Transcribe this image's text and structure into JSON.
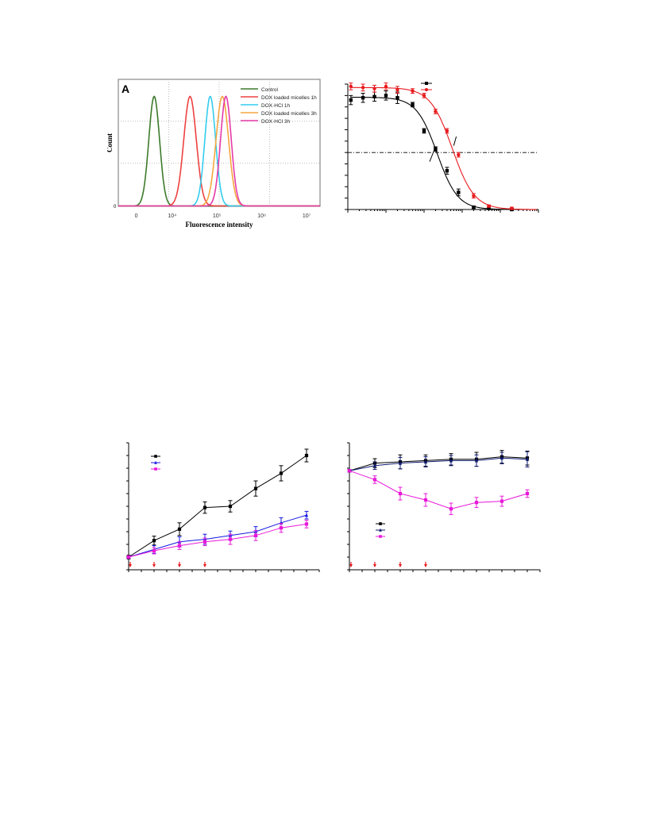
{
  "colors": {
    "black": "#000000",
    "red": "#e8191d",
    "blue": "#1418e0",
    "magenta": "#e817d8",
    "navy": "#0d1a6e",
    "green": "#3c7a2a",
    "hist_red": "#ee4040",
    "cyan": "#33ccee",
    "orange": "#f5a640",
    "pink": "#e53aa8"
  },
  "chart_data": [
    {
      "id": "A",
      "type": "line",
      "panel_label": "A",
      "xlabel": "Fluorescence intensity",
      "ylabel": "Count",
      "x_tick_labels": [
        "0",
        "10⁴",
        "10⁵",
        "10⁶",
        "10⁷"
      ],
      "y_tick_labels": [
        "0"
      ],
      "legend_position": "top-right",
      "series": [
        {
          "name": "Control",
          "color_key": "green",
          "peak_log": 3.6,
          "width": 0.12
        },
        {
          "name": "DOX loaded micelles 1h",
          "color_key": "hist_red",
          "peak_log": 4.4,
          "width": 0.14
        },
        {
          "name": "DOX·HCl 1h",
          "color_key": "cyan",
          "peak_log": 4.85,
          "width": 0.12
        },
        {
          "name": "DOX loaded micelles 3h",
          "color_key": "orange",
          "peak_log": 5.12,
          "width": 0.14
        },
        {
          "name": "DOX·HCl 3h",
          "color_key": "pink",
          "peak_log": 5.2,
          "width": 0.12
        }
      ],
      "x_range_log": [
        2.8,
        7.3
      ]
    },
    {
      "id": "B",
      "type": "scatter",
      "xscale": "log",
      "xlim": [
        0.001,
        100
      ],
      "ylim": [
        0,
        1.1
      ],
      "reference_line_y": 0.5,
      "series": [
        {
          "color_key": "black",
          "x": [
            0.0012,
            0.0025,
            0.005,
            0.01,
            0.02,
            0.05,
            0.1,
            0.2,
            0.4,
            0.8,
            2,
            5,
            20
          ],
          "y": [
            0.96,
            0.98,
            0.99,
            1.0,
            0.98,
            0.92,
            0.69,
            0.53,
            0.34,
            0.15,
            0.02,
            0.01,
            0.0
          ],
          "err": [
            0.04,
            0.04,
            0.04,
            0.04,
            0.05,
            0.02,
            0.02,
            0.02,
            0.03,
            0.03,
            0.01,
            0.01,
            0.01
          ],
          "marker": "square"
        },
        {
          "color_key": "red",
          "x": [
            0.0012,
            0.0025,
            0.005,
            0.01,
            0.02,
            0.05,
            0.1,
            0.2,
            0.4,
            0.8,
            2,
            5,
            20
          ],
          "y": [
            1.08,
            1.07,
            1.06,
            1.08,
            1.05,
            1.04,
            1.0,
            0.86,
            0.69,
            0.48,
            0.12,
            0.03,
            0.01
          ],
          "err": [
            0.03,
            0.03,
            0.03,
            0.03,
            0.03,
            0.02,
            0.02,
            0.02,
            0.02,
            0.02,
            0.02,
            0.01,
            0.01
          ],
          "marker": "circle"
        }
      ]
    },
    {
      "id": "C",
      "type": "line",
      "xlim": [
        0,
        15
      ],
      "ylim": [
        0,
        10
      ],
      "arrows_at_x": [
        0,
        2,
        4,
        6
      ],
      "series": [
        {
          "color_key": "black",
          "marker": "square",
          "x": [
            0,
            2,
            4,
            6,
            8,
            10,
            12,
            14
          ],
          "y": [
            1.0,
            2.3,
            3.2,
            4.9,
            5.0,
            6.4,
            7.6,
            9.0
          ],
          "err": [
            0.15,
            0.35,
            0.5,
            0.45,
            0.45,
            0.6,
            0.6,
            0.5
          ]
        },
        {
          "color_key": "blue",
          "marker": "triangle",
          "x": [
            0,
            2,
            4,
            6,
            8,
            10,
            12,
            14
          ],
          "y": [
            1.0,
            1.6,
            2.2,
            2.4,
            2.7,
            3.0,
            3.7,
            4.3
          ],
          "err": [
            0.1,
            0.3,
            0.4,
            0.4,
            0.35,
            0.4,
            0.4,
            0.3
          ]
        },
        {
          "color_key": "magenta",
          "marker": "square",
          "x": [
            0,
            2,
            4,
            6,
            8,
            10,
            12,
            14
          ],
          "y": [
            1.0,
            1.5,
            1.9,
            2.2,
            2.4,
            2.7,
            3.3,
            3.6
          ],
          "err": [
            0.1,
            0.25,
            0.3,
            0.3,
            0.4,
            0.4,
            0.35,
            0.3
          ]
        }
      ]
    },
    {
      "id": "D",
      "type": "line",
      "xlim": [
        0,
        15
      ],
      "ylim": [
        0,
        10
      ],
      "arrows_at_x": [
        0,
        2,
        4,
        6
      ],
      "series": [
        {
          "color_key": "black",
          "marker": "square",
          "x": [
            0,
            2,
            4,
            6,
            8,
            10,
            12,
            14
          ],
          "y": [
            7.8,
            8.4,
            8.5,
            8.6,
            8.7,
            8.7,
            8.9,
            8.8
          ],
          "err": [
            0.1,
            0.35,
            0.55,
            0.45,
            0.45,
            0.55,
            0.5,
            0.55
          ]
        },
        {
          "color_key": "navy",
          "marker": "triangle",
          "x": [
            0,
            2,
            4,
            6,
            8,
            10,
            12,
            14
          ],
          "y": [
            7.8,
            8.2,
            8.4,
            8.5,
            8.6,
            8.6,
            8.8,
            8.7
          ],
          "err": [
            0.1,
            0.3,
            0.45,
            0.4,
            0.4,
            0.45,
            0.45,
            0.6
          ]
        },
        {
          "color_key": "magenta",
          "marker": "square",
          "x": [
            0,
            2,
            4,
            6,
            8,
            10,
            12,
            14
          ],
          "y": [
            7.8,
            7.1,
            6.0,
            5.5,
            4.8,
            5.3,
            5.4,
            6.0
          ],
          "err": [
            0.1,
            0.3,
            0.5,
            0.5,
            0.45,
            0.4,
            0.4,
            0.3
          ]
        }
      ]
    }
  ]
}
